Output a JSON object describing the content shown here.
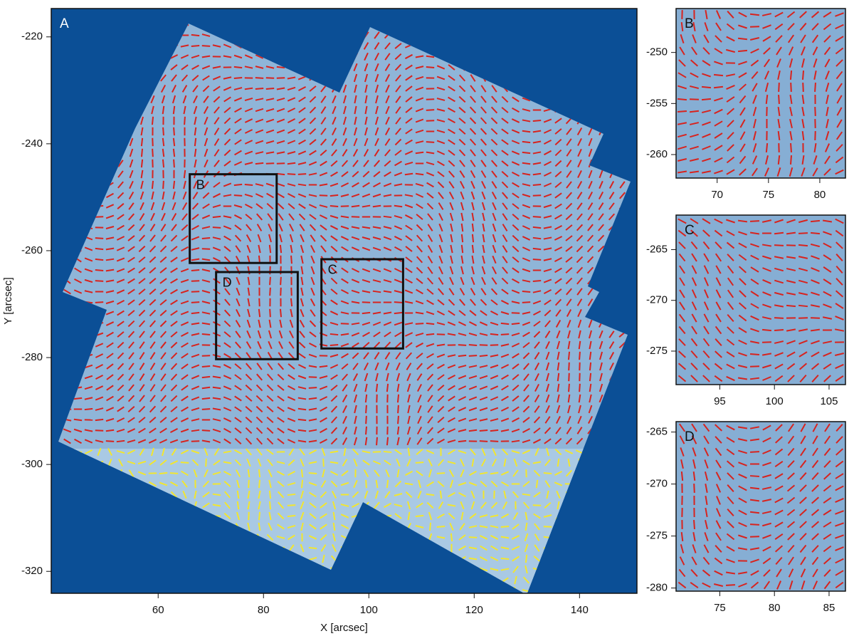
{
  "chart_data": [
    {
      "type": "image",
      "title": "A",
      "xlabel": "X [arcsec]",
      "ylabel": "Y [arcsec]",
      "xlim": [
        39.7,
        150.9
      ],
      "ylim": [
        -324.1,
        -214.7
      ],
      "xticks": [
        60,
        80,
        100,
        120,
        140
      ],
      "yticks": [
        -220,
        -240,
        -260,
        -280,
        -300,
        -320
      ]
    },
    {
      "type": "image",
      "title": "B",
      "xlim": [
        66.0,
        82.5
      ],
      "ylim": [
        -262.3,
        -245.7
      ],
      "xticks": [
        70,
        75,
        80
      ],
      "yticks": [
        -250,
        -255,
        -260
      ]
    },
    {
      "type": "image",
      "title": "C",
      "xlim": [
        91.0,
        106.5
      ],
      "ylim": [
        -278.3,
        -261.6
      ],
      "xticks": [
        95,
        100,
        105
      ],
      "yticks": [
        -265,
        -270,
        -275
      ]
    },
    {
      "type": "image",
      "title": "D",
      "xlim": [
        71.0,
        86.5
      ],
      "ylim": [
        -280.3,
        -264.0
      ],
      "xticks": [
        75,
        80,
        85
      ],
      "yticks": [
        -265,
        -270,
        -275,
        -280
      ]
    }
  ]
}
